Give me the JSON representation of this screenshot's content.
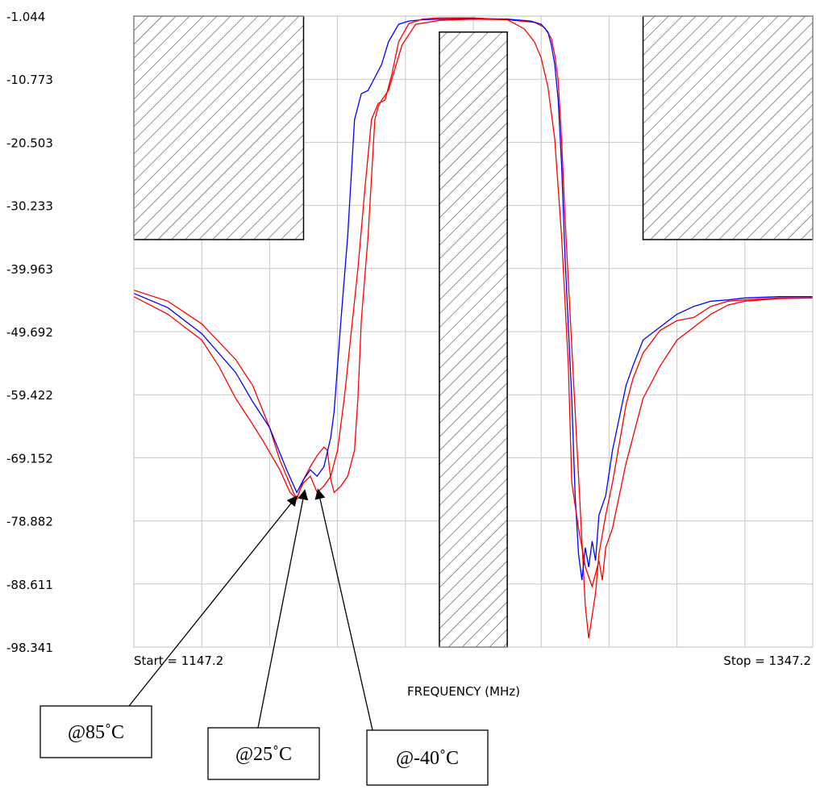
{
  "chart_data": {
    "type": "line",
    "title": "",
    "xlabel": "FREQUENCY (MHz)",
    "ylabel": "",
    "xlim": [
      1147.2,
      1347.2
    ],
    "ylim": [
      -98.341,
      -1.044
    ],
    "start_label": "Start = 1147.2",
    "stop_label": "Stop = 1347.2",
    "y_ticks": [
      "-1.044",
      "-10.773",
      "-20.503",
      "-30.233",
      "-39.963",
      "-49.692",
      "-59.422",
      "-69.152",
      "-78.882",
      "-88.611",
      "-98.341"
    ],
    "grid": true,
    "colors": {
      "red": "#ff0000",
      "blue": "#0000ff",
      "mask": "#000000"
    },
    "masks": [
      {
        "x": [
          1147.2,
          1197.2
        ],
        "y": [
          -35.5,
          -1.044
        ]
      },
      {
        "x": [
          1237.2,
          1257.2
        ],
        "y": [
          -98.341,
          -3.5
        ]
      },
      {
        "x": [
          1297.2,
          1347.2
        ],
        "y": [
          -35.5,
          -1.044
        ]
      }
    ],
    "series": [
      {
        "color": "#ff0000",
        "x": [
          1147.2,
          1157.2,
          1167.2,
          1177.2,
          1182.2,
          1187.2,
          1190.2,
          1194.2,
          1195.2,
          1196.2,
          1197.2,
          1199.2,
          1201.2,
          1203.2,
          1204.2,
          1205.2,
          1206.2,
          1208.2,
          1210.2,
          1212.2,
          1213.2,
          1214.2,
          1216.2,
          1218.2,
          1219.2,
          1220.2,
          1222.2,
          1226.2,
          1230.2,
          1237.2,
          1247.2,
          1257.2,
          1265.2,
          1268.2,
          1270.2,
          1271.2,
          1272.2,
          1273.2,
          1274.2,
          1276.2,
          1278.2,
          1280.2,
          1281.2,
          1283.2,
          1284.2,
          1286.2,
          1288.2,
          1290.2,
          1292.2,
          1294.2,
          1297.2,
          1302.2,
          1307.2,
          1312.2,
          1317.2,
          1322.2,
          1327.2,
          1337.2,
          1347.2
        ],
        "values": [
          -43.3,
          -45.0,
          -48.5,
          -54.0,
          -58.0,
          -64.5,
          -69.5,
          -74.5,
          -75.5,
          -74.0,
          -72.5,
          -70.5,
          -68.8,
          -67.5,
          -68.0,
          -72.5,
          -74.5,
          -73.5,
          -72.0,
          -68.0,
          -60.0,
          -48.0,
          -35.0,
          -17.0,
          -15.0,
          -14.0,
          -12.5,
          -5.5,
          -2.3,
          -1.7,
          -1.5,
          -1.6,
          -2.0,
          -2.8,
          -4.5,
          -7.0,
          -11.0,
          -20.0,
          -32.0,
          -52.0,
          -72.0,
          -92.0,
          -97.0,
          -90.0,
          -84.0,
          -78.0,
          -73.0,
          -67.0,
          -61.0,
          -57.0,
          -53.0,
          -49.5,
          -48.0,
          -47.5,
          -45.8,
          -45.0,
          -44.8,
          -44.5,
          -44.5
        ]
      },
      {
        "color": "#0000ff",
        "x": [
          1147.2,
          1157.2,
          1167.2,
          1177.2,
          1182.2,
          1187.2,
          1192.2,
          1195.2,
          1197.2,
          1199.2,
          1201.2,
          1203.2,
          1205.2,
          1206.2,
          1207.2,
          1208.2,
          1210.2,
          1212.2,
          1214.2,
          1216.2,
          1218.2,
          1220.2,
          1222.2,
          1225.2,
          1228.2,
          1232.2,
          1237.2,
          1247.2,
          1257.2,
          1264.2,
          1267.2,
          1269.2,
          1270.2,
          1271.2,
          1272.2,
          1273.2,
          1274.2,
          1276.2,
          1277.2,
          1278.2,
          1279.2,
          1280.2,
          1281.2,
          1282.2,
          1283.2,
          1284.2,
          1286.2,
          1288.2,
          1290.2,
          1292.2,
          1294.2,
          1297.2,
          1302.2,
          1307.2,
          1312.2,
          1317.2,
          1322.2,
          1327.2,
          1337.2,
          1347.2
        ],
        "values": [
          -43.8,
          -46.0,
          -50.0,
          -56.0,
          -60.5,
          -64.5,
          -71.0,
          -74.5,
          -72.5,
          -71.0,
          -72.0,
          -70.5,
          -66.0,
          -62.0,
          -55.0,
          -48.0,
          -35.0,
          -17.0,
          -13.0,
          -12.5,
          -10.5,
          -8.5,
          -5.0,
          -2.3,
          -1.8,
          -1.6,
          -1.5,
          -1.4,
          -1.5,
          -1.8,
          -2.3,
          -3.5,
          -5.5,
          -8.5,
          -14.0,
          -24.0,
          -38.0,
          -60.0,
          -75.0,
          -84.0,
          -88.0,
          -83.0,
          -86.0,
          -82.0,
          -85.0,
          -78.0,
          -75.0,
          -68.0,
          -63.0,
          -58.0,
          -55.0,
          -51.0,
          -49.0,
          -47.0,
          -45.8,
          -45.0,
          -44.8,
          -44.5,
          -44.3,
          -44.3
        ]
      },
      {
        "color": "#ff0000",
        "x": [
          1147.2,
          1157.2,
          1167.2,
          1172.2,
          1177.2,
          1182.2,
          1185.2,
          1190.2,
          1193.2,
          1195.2,
          1196.2,
          1197.2,
          1199.2,
          1201.2,
          1203.2,
          1205.2,
          1207.2,
          1209.2,
          1211.2,
          1213.2,
          1215.2,
          1217.2,
          1219.2,
          1221.2,
          1223.2,
          1225.2,
          1228.2,
          1232.2,
          1237.2,
          1247.2,
          1257.2,
          1262.2,
          1265.2,
          1267.2,
          1269.2,
          1271.2,
          1273.2,
          1275.2,
          1276.2,
          1278.2,
          1280.2,
          1282.2,
          1284.2,
          1285.2,
          1286.2,
          1288.2,
          1290.2,
          1292.2,
          1294.2,
          1297.2,
          1302.2,
          1307.2,
          1312.2,
          1317.2,
          1322.2,
          1327.2,
          1337.2,
          1347.2
        ],
        "values": [
          -44.3,
          -47.0,
          -51.0,
          -55.0,
          -60.0,
          -64.0,
          -66.5,
          -71.0,
          -74.5,
          -75.5,
          -74.0,
          -73.0,
          -72.0,
          -74.5,
          -73.5,
          -72.0,
          -68.0,
          -60.0,
          -50.0,
          -40.0,
          -28.0,
          -17.0,
          -14.5,
          -14.0,
          -10.0,
          -5.0,
          -2.2,
          -1.5,
          -1.3,
          -1.3,
          -1.6,
          -3.0,
          -5.0,
          -7.5,
          -12.0,
          -20.0,
          -35.0,
          -55.0,
          -73.0,
          -80.0,
          -86.0,
          -89.0,
          -85.0,
          -88.0,
          -83.0,
          -80.0,
          -75.0,
          -70.0,
          -66.0,
          -60.0,
          -55.0,
          -51.0,
          -49.0,
          -47.0,
          -45.6,
          -45.0,
          -44.6,
          -44.5
        ]
      }
    ]
  },
  "annotations": [
    {
      "label": "@85˚C",
      "target_x": 1195.0,
      "target_y": -75.2
    },
    {
      "label": "@25˚C",
      "target_x": 1197.5,
      "target_y": -74.3
    },
    {
      "label": "@-40˚C",
      "target_x": 1201.5,
      "target_y": -74.2
    }
  ]
}
